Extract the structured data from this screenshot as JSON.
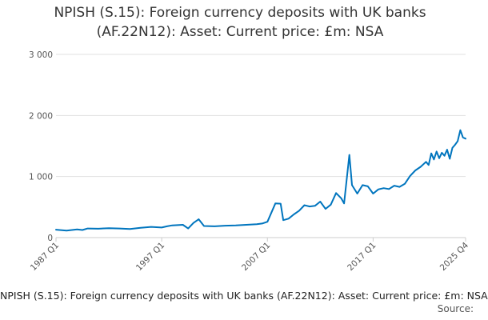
{
  "chart_data": {
    "type": "line",
    "title_lines": [
      "NPISH (S.15): Foreign currency deposits with UK banks",
      "(AF.22N12): Asset: Current price: £m: NSA"
    ],
    "xlabel": "",
    "ylabel": "",
    "ylim": [
      0,
      3000
    ],
    "yticks": [
      {
        "value": 0,
        "label": "0"
      },
      {
        "value": 1000,
        "label": "1 000"
      },
      {
        "value": 2000,
        "label": "2 000"
      },
      {
        "value": 3000,
        "label": "3 000"
      }
    ],
    "xlim": [
      1987.0,
      2025.75
    ],
    "xticks": [
      {
        "value": 1987.0,
        "label": "1987 Q1"
      },
      {
        "value": 1997.0,
        "label": "1997 Q1"
      },
      {
        "value": 2007.0,
        "label": "2007 Q1"
      },
      {
        "value": 2017.0,
        "label": "2017 Q1"
      },
      {
        "value": 2025.75,
        "label": "2025 Q4"
      }
    ],
    "grid": true,
    "legend": "none",
    "line_color": "#0075be",
    "series": [
      {
        "points": [
          [
            1987.0,
            130
          ],
          [
            1988.0,
            115
          ],
          [
            1989.0,
            135
          ],
          [
            1989.5,
            125
          ],
          [
            1990.0,
            150
          ],
          [
            1991.0,
            145
          ],
          [
            1992.0,
            155
          ],
          [
            1993.0,
            150
          ],
          [
            1994.0,
            140
          ],
          [
            1995.0,
            160
          ],
          [
            1996.0,
            175
          ],
          [
            1997.0,
            165
          ],
          [
            1997.5,
            185
          ],
          [
            1998.0,
            200
          ],
          [
            1999.0,
            210
          ],
          [
            1999.5,
            150
          ],
          [
            2000.0,
            240
          ],
          [
            2000.5,
            300
          ],
          [
            2001.0,
            190
          ],
          [
            2002.0,
            185
          ],
          [
            2003.0,
            195
          ],
          [
            2004.0,
            200
          ],
          [
            2005.0,
            210
          ],
          [
            2006.0,
            220
          ],
          [
            2006.5,
            230
          ],
          [
            2007.0,
            260
          ],
          [
            2007.75,
            560
          ],
          [
            2008.25,
            555
          ],
          [
            2008.5,
            285
          ],
          [
            2009.0,
            310
          ],
          [
            2009.5,
            380
          ],
          [
            2010.0,
            440
          ],
          [
            2010.5,
            530
          ],
          [
            2011.0,
            510
          ],
          [
            2011.5,
            520
          ],
          [
            2012.0,
            590
          ],
          [
            2012.5,
            470
          ],
          [
            2013.0,
            540
          ],
          [
            2013.5,
            730
          ],
          [
            2014.0,
            640
          ],
          [
            2014.25,
            560
          ],
          [
            2014.75,
            1355
          ],
          [
            2015.0,
            860
          ],
          [
            2015.5,
            720
          ],
          [
            2016.0,
            860
          ],
          [
            2016.5,
            840
          ],
          [
            2017.0,
            720
          ],
          [
            2017.5,
            790
          ],
          [
            2018.0,
            810
          ],
          [
            2018.5,
            795
          ],
          [
            2019.0,
            850
          ],
          [
            2019.5,
            830
          ],
          [
            2020.0,
            880
          ],
          [
            2020.5,
            1010
          ],
          [
            2021.0,
            1100
          ],
          [
            2021.5,
            1160
          ],
          [
            2022.0,
            1240
          ],
          [
            2022.25,
            1190
          ],
          [
            2022.5,
            1380
          ],
          [
            2022.75,
            1280
          ],
          [
            2023.0,
            1410
          ],
          [
            2023.25,
            1300
          ],
          [
            2023.5,
            1390
          ],
          [
            2023.75,
            1340
          ],
          [
            2024.0,
            1440
          ],
          [
            2024.25,
            1290
          ],
          [
            2024.5,
            1470
          ],
          [
            2024.75,
            1520
          ],
          [
            2025.0,
            1580
          ],
          [
            2025.25,
            1760
          ],
          [
            2025.5,
            1640
          ],
          [
            2025.75,
            1620
          ]
        ]
      }
    ]
  },
  "caption": "NPISH (S.15): Foreign currency deposits with UK banks (AF.22N12): Asset: Current price: £m: NSA",
  "source_label": "Source:"
}
